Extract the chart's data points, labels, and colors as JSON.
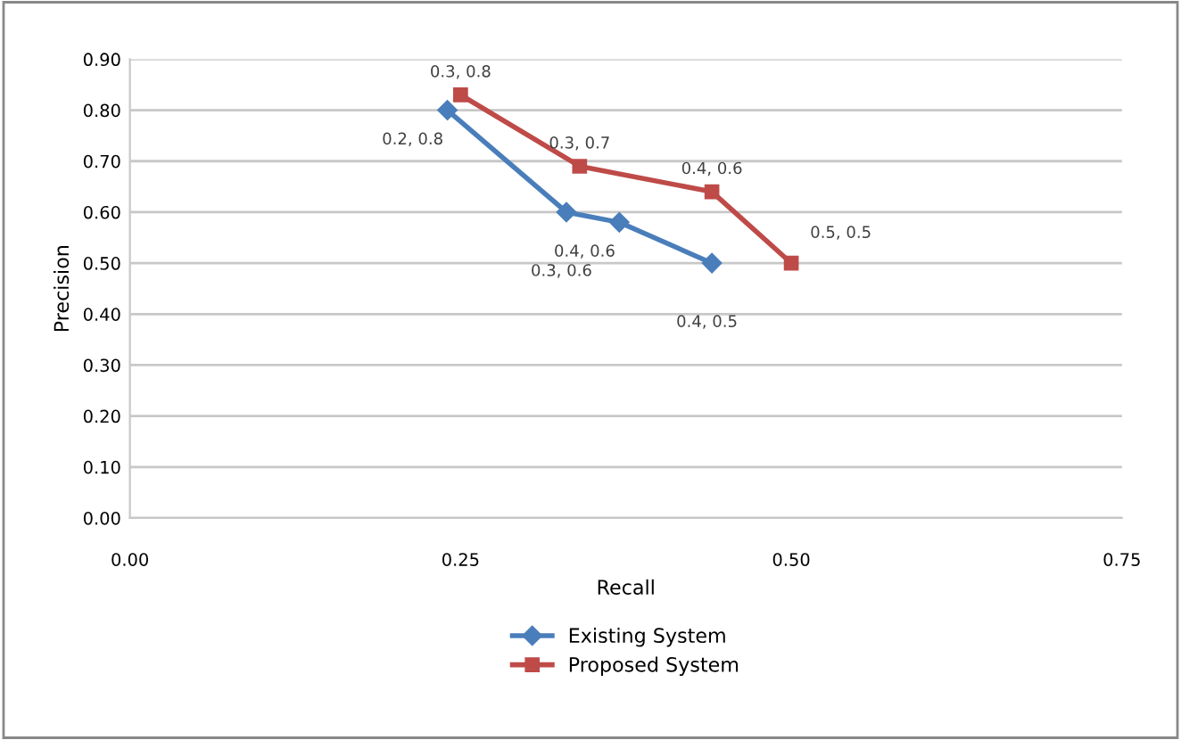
{
  "chart_data": {
    "type": "line",
    "xlabel": "Recall",
    "ylabel": "Precision",
    "xlim": [
      0,
      0.75
    ],
    "xticks": [
      {
        "value": 0,
        "label": "0.00"
      },
      {
        "value": 0.25,
        "label": "0.25"
      },
      {
        "value": 0.5,
        "label": "0.50"
      },
      {
        "value": 0.75,
        "label": "0.75"
      }
    ],
    "ylim": [
      0,
      0.9
    ],
    "yticks": [
      {
        "value": 0,
        "label": "0.00"
      },
      {
        "value": 0.1,
        "label": "0.10"
      },
      {
        "value": 0.2,
        "label": "0.20"
      },
      {
        "value": 0.3,
        "label": "0.30"
      },
      {
        "value": 0.4,
        "label": "0.40"
      },
      {
        "value": 0.5,
        "label": "0.50"
      },
      {
        "value": 0.6,
        "label": "0.60"
      },
      {
        "value": 0.7,
        "label": "0.70"
      },
      {
        "value": 0.8,
        "label": "0.80"
      },
      {
        "value": 0.9,
        "label": "0.90"
      }
    ],
    "grid": "y",
    "legend": "bottom",
    "series": [
      {
        "name": "Existing System",
        "color": "#4a7ebb",
        "marker": "diamond",
        "x": [
          0.24,
          0.33,
          0.37,
          0.44
        ],
        "values": [
          0.8,
          0.6,
          0.58,
          0.5
        ],
        "value_labels": [
          "0.2, 0.8",
          "0.3, 0.6",
          "0.4, 0.6",
          "0.4, 0.5"
        ]
      },
      {
        "name": "Proposed System",
        "color": "#be4b48",
        "marker": "square",
        "x": [
          0.25,
          0.34,
          0.44,
          0.5
        ],
        "values": [
          0.83,
          0.69,
          0.64,
          0.5
        ],
        "value_labels": [
          "0.3, 0.8",
          "0.3, 0.7",
          "0.4, 0.6",
          "0.5, 0.5"
        ]
      }
    ]
  }
}
